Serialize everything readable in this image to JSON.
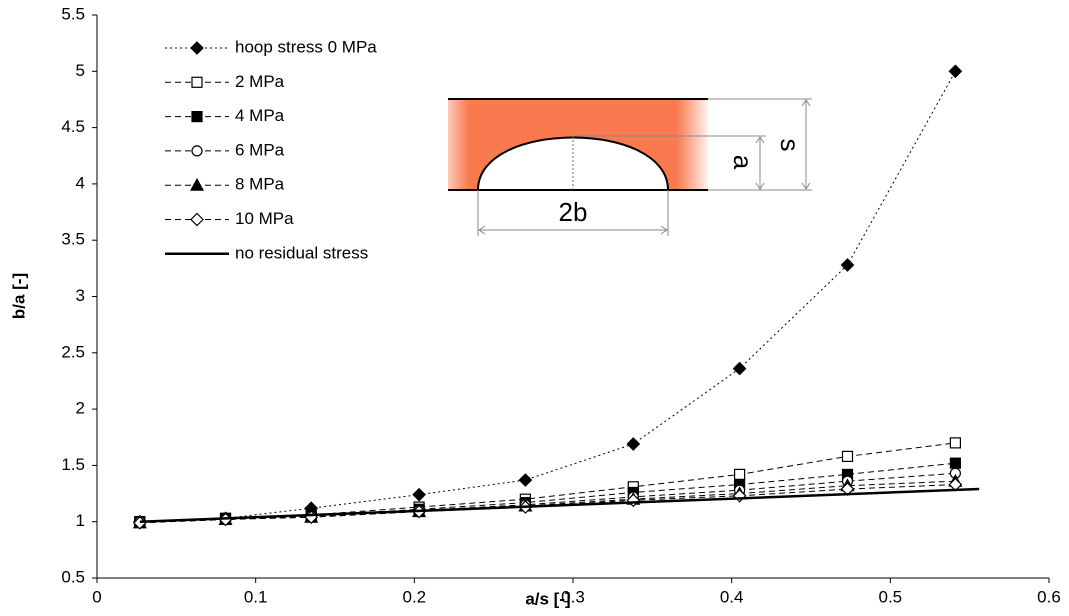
{
  "chart_data": {
    "type": "line",
    "x_label": "a/s [-]",
    "y_label": "b/a [-]",
    "xlim": [
      0,
      0.6
    ],
    "xticks": [
      0,
      0.1,
      0.2,
      0.3,
      0.4,
      0.5,
      0.6
    ],
    "ylim": [
      0.5,
      5.5
    ],
    "yticks": [
      0.5,
      1,
      1.5,
      2,
      2.5,
      3,
      3.5,
      4,
      4.5,
      5,
      5.5
    ],
    "grid": false,
    "legend": "upper left",
    "x": [
      0.027,
      0.081,
      0.135,
      0.203,
      0.27,
      0.338,
      0.405,
      0.473,
      0.541
    ],
    "series": [
      {
        "name": "hoop stress 0 MPa",
        "color": "#000000",
        "style": "dotted",
        "marker": "diamond-filled",
        "values": [
          1.0,
          1.03,
          1.12,
          1.24,
          1.37,
          1.69,
          2.36,
          3.28,
          5.0
        ]
      },
      {
        "name": "2 MPa",
        "color": "#000000",
        "style": "dashed",
        "marker": "square-open",
        "values": [
          1.0,
          1.03,
          1.06,
          1.13,
          1.2,
          1.31,
          1.42,
          1.58,
          1.7
        ]
      },
      {
        "name": "4 MPa",
        "color": "#000000",
        "style": "dashed",
        "marker": "square-filled",
        "values": [
          1.0,
          1.03,
          1.05,
          1.11,
          1.17,
          1.26,
          1.33,
          1.42,
          1.52
        ]
      },
      {
        "name": "6 MPa",
        "color": "#000000",
        "style": "dashed",
        "marker": "circle-open",
        "values": [
          1.0,
          1.02,
          1.05,
          1.1,
          1.15,
          1.22,
          1.28,
          1.36,
          1.43
        ]
      },
      {
        "name": "8 MPa",
        "color": "#000000",
        "style": "dashed",
        "marker": "triangle-filled",
        "values": [
          0.99,
          1.02,
          1.04,
          1.09,
          1.14,
          1.2,
          1.25,
          1.32,
          1.36
        ]
      },
      {
        "name": "10 MPa",
        "color": "#000000",
        "style": "dashed",
        "marker": "diamond-open",
        "values": [
          0.99,
          1.02,
          1.04,
          1.09,
          1.13,
          1.19,
          1.23,
          1.29,
          1.33
        ]
      },
      {
        "name": "no residual stress",
        "color": "#000000",
        "style": "solid",
        "marker": "none",
        "x": [
          0.027,
          0.556
        ],
        "values": [
          1.0,
          1.29
        ]
      }
    ],
    "annotations": [
      "2b",
      "a",
      "s"
    ]
  }
}
